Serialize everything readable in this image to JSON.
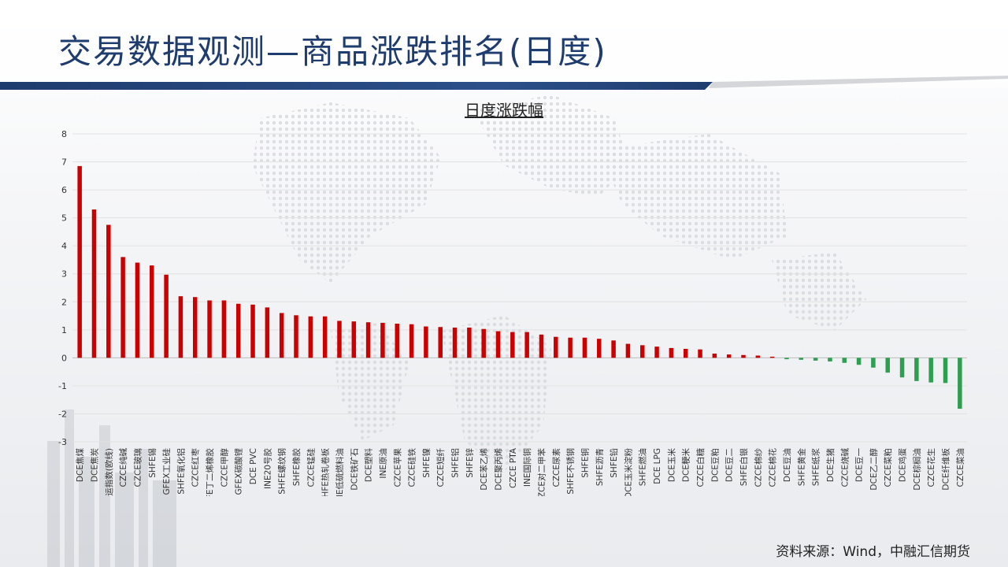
{
  "page": {
    "title": "交易数据观测—商品涨跌排名(日度)",
    "source": "资料来源：Wind，中融汇信期货"
  },
  "colors": {
    "up": "#cc0000",
    "down": "#2e9e4f",
    "title": "#1f3c6e",
    "band": "#1f3c6e"
  },
  "chart_data": {
    "type": "bar",
    "title": "日度涨跌幅",
    "ylim": [
      -3,
      8
    ],
    "yticks": [
      -3,
      -2,
      -1,
      0,
      1,
      2,
      3,
      4,
      5,
      6,
      7,
      8
    ],
    "grid": true,
    "categories": [
      "DCE焦煤",
      "DCE焦炭",
      "INE集运指数(欧线)",
      "CZCE纯碱",
      "CZCE玻璃",
      "SHFE锡",
      "GFEX工业硅",
      "SHFE氧化铝",
      "CZCE红枣",
      "SHFE丁二烯橡胶",
      "CZCE甲醇",
      "GFEX碳酸锂",
      "DCE PVC",
      "INE20号胶",
      "SHFE螺纹钢",
      "SHFE橡胶",
      "CZCE锰硅",
      "SHFE热轧卷板",
      "INE低硫燃料油",
      "DCE铁矿石",
      "DCE塑料",
      "INE原油",
      "CZCE苹果",
      "CZCE硅铁",
      "SHFE镍",
      "CZCE短纤",
      "SHFE铝",
      "SHFE锌",
      "DCE苯乙烯",
      "DCE聚丙烯",
      "CZCE PTA",
      "INE国际铜",
      "CZCE对二甲苯",
      "CZCE尿素",
      "SHFE不锈钢",
      "SHFE铜",
      "SHFE沥青",
      "SHFE铅",
      "DCE玉米淀粉",
      "SHFE燃油",
      "DCE LPG",
      "DCE玉米",
      "DCE粳米",
      "CZCE白糖",
      "DCE豆粕",
      "DCE豆二",
      "SHFE白银",
      "CZCE棉纱",
      "CZCE棉花",
      "DCE豆油",
      "SHFE黄金",
      "SHFE纸浆",
      "DCE生猪",
      "CZCE烧碱",
      "DCE豆一",
      "DCE乙二醇",
      "CZCE菜粕",
      "DCE鸡蛋",
      "DCE棕榈油",
      "CZCE花生",
      "DCE纤维板",
      "CZCE菜油"
    ],
    "values": [
      6.85,
      5.3,
      4.75,
      3.6,
      3.4,
      3.3,
      2.97,
      2.2,
      2.17,
      2.05,
      2.05,
      1.93,
      1.9,
      1.8,
      1.6,
      1.52,
      1.48,
      1.48,
      1.32,
      1.3,
      1.27,
      1.25,
      1.22,
      1.2,
      1.12,
      1.1,
      1.08,
      1.08,
      1.03,
      0.95,
      0.92,
      0.92,
      0.83,
      0.75,
      0.72,
      0.72,
      0.68,
      0.62,
      0.5,
      0.45,
      0.4,
      0.35,
      0.32,
      0.3,
      0.15,
      0.12,
      0.1,
      0.08,
      0.04,
      -0.05,
      -0.07,
      -0.1,
      -0.13,
      -0.18,
      -0.25,
      -0.35,
      -0.53,
      -0.7,
      -0.83,
      -0.88,
      -0.9,
      -1.82
    ]
  }
}
